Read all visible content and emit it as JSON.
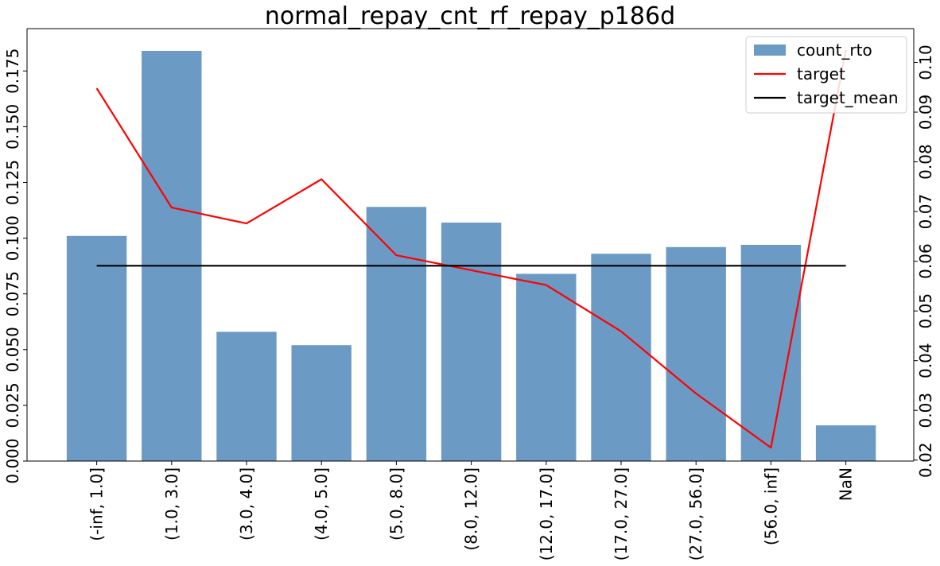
{
  "chart_data": {
    "type": "bar",
    "title": "normal_repay_cnt_rf_repay_p186d",
    "categories": [
      "(-inf, 1.0]",
      "(1.0, 3.0]",
      "(3.0, 4.0]",
      "(4.0, 5.0]",
      "(5.0, 8.0]",
      "(8.0, 12.0]",
      "(12.0, 17.0]",
      "(17.0, 27.0]",
      "(27.0, 56.0]",
      "(56.0, inf]",
      "NaN"
    ],
    "series": [
      {
        "name": "count_rto",
        "type": "bar",
        "axis": "left",
        "color": "#4a84b8",
        "values": [
          0.101,
          0.184,
          0.058,
          0.052,
          0.114,
          0.107,
          0.084,
          0.093,
          0.096,
          0.097,
          0.016
        ]
      },
      {
        "name": "target",
        "type": "line",
        "axis": "right",
        "color": "#ff0000",
        "values": [
          0.0948,
          0.0708,
          0.0676,
          0.0765,
          0.0612,
          0.0582,
          0.0552,
          0.0459,
          0.0334,
          0.0225,
          0.1025
        ]
      },
      {
        "name": "target_mean",
        "type": "line",
        "axis": "right",
        "color": "#000000",
        "values": [
          0.0591,
          0.0591,
          0.0591,
          0.0591,
          0.0591,
          0.0591,
          0.0591,
          0.0591,
          0.0591,
          0.0591,
          0.0591
        ]
      }
    ],
    "y_left": {
      "ylim": [
        0,
        0.194
      ],
      "ticks": [
        0.0,
        0.025,
        0.05,
        0.075,
        0.1,
        0.125,
        0.15,
        0.175
      ],
      "tick_labels": [
        "0.000",
        "0.025",
        "0.050",
        "0.075",
        "0.100",
        "0.125",
        "0.150",
        "0.175"
      ]
    },
    "y_right": {
      "ylim": [
        0.0198,
        0.1068
      ],
      "ticks": [
        0.02,
        0.03,
        0.04,
        0.05,
        0.06,
        0.07,
        0.08,
        0.09,
        0.1
      ],
      "tick_labels": [
        "0.02",
        "0.03",
        "0.04",
        "0.05",
        "0.06",
        "0.07",
        "0.08",
        "0.09",
        "0.10"
      ]
    },
    "xlabel": "",
    "ylabel": "",
    "legend_position": "top-right",
    "grid": false
  }
}
